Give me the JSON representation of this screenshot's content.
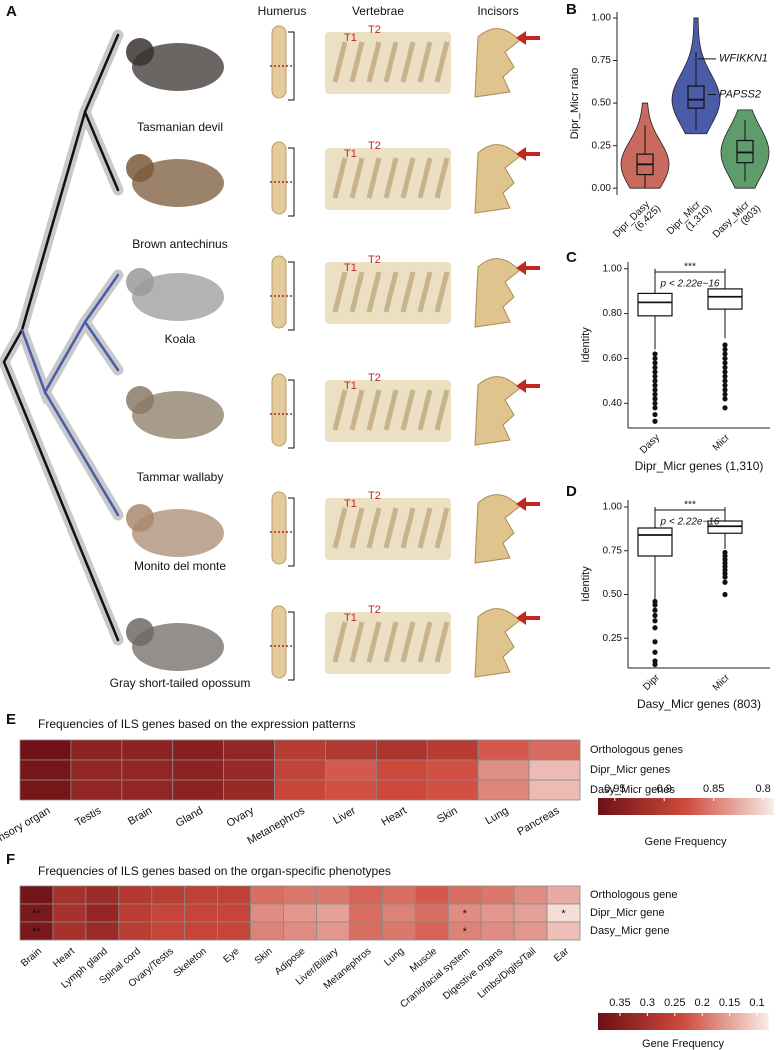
{
  "panel_a": {
    "label": "A",
    "columns": [
      "Humerus",
      "Vertebrae",
      "Incisors"
    ],
    "species": [
      "Tasmanian devil",
      "Brown antechinus",
      "Koala",
      "Tammar wallaby",
      "Monito del monte",
      "Gray short-tailed opossum"
    ],
    "vertebra_labels": [
      "T1",
      "T2"
    ]
  },
  "chart_data": [
    {
      "type": "violin",
      "panel": "B",
      "ylabel": "Dipr_Micr ratio",
      "ylim": [
        -0.04,
        1.035
      ],
      "yticks": [
        {
          "value": 0,
          "label": "0.00"
        },
        0.25,
        {
          "value": 0.5,
          "label": "0.50"
        },
        0.75,
        {
          "value": 1,
          "label": "1.00"
        }
      ],
      "boxes": [
        {
          "name": "Dipr_Dasy",
          "n_label": "(6,425)",
          "color": "#c96a5e",
          "violin": [
            0,
            0.5
          ],
          "whisker_low": 0,
          "q1": 0.08,
          "median": 0.14,
          "q3": 0.2,
          "whisker_high": 0.37
        },
        {
          "name": "Dipr_Micr",
          "n_label": "(1,310)",
          "color": "#4a5ca8",
          "violin": [
            0.32,
            1.0
          ],
          "whisker_low": 0.34,
          "q1": 0.47,
          "median": 0.52,
          "q3": 0.6,
          "whisker_high": 0.8
        },
        {
          "name": "Dasy_Micr",
          "n_label": "(803)",
          "color": "#5e9c6c",
          "violin": [
            0,
            0.46
          ],
          "whisker_low": 0.04,
          "q1": 0.15,
          "median": 0.21,
          "q3": 0.28,
          "whisker_high": 0.4
        }
      ],
      "annotations": [
        {
          "text": "WFIKKN1",
          "value": 0.76
        },
        {
          "text": "PAPSS2",
          "value": 0.55
        }
      ]
    },
    {
      "type": "box",
      "panel": "C",
      "ylabel": "Identity",
      "xlabel": "Dipr_Micr genes (1,310)",
      "ylim": [
        0.29,
        1.03
      ],
      "yticks": [
        {
          "value": 0.4,
          "label": "0.40"
        },
        {
          "value": 0.6,
          "label": "0.60"
        },
        {
          "value": 0.8,
          "label": "0.80"
        },
        {
          "value": 1,
          "label": "1.00"
        }
      ],
      "significance": "***",
      "p_label": "p < 2.22e−16",
      "boxes": [
        {
          "name": "Dasy",
          "whisker_low": 0.64,
          "q1": 0.79,
          "median": 0.85,
          "q3": 0.89,
          "whisker_high": 1.0,
          "outliers": [
            0.62,
            0.6,
            0.58,
            0.56,
            0.54,
            0.52,
            0.5,
            0.48,
            0.46,
            0.44,
            0.42,
            0.4,
            0.38,
            0.35,
            0.32
          ]
        },
        {
          "name": "Micr",
          "whisker_low": 0.69,
          "q1": 0.82,
          "median": 0.875,
          "q3": 0.91,
          "whisker_high": 1.0,
          "outliers": [
            0.66,
            0.64,
            0.62,
            0.6,
            0.58,
            0.56,
            0.54,
            0.52,
            0.5,
            0.48,
            0.46,
            0.44,
            0.42,
            0.38
          ]
        }
      ]
    },
    {
      "type": "box",
      "panel": "D",
      "ylabel": "Identity",
      "xlabel": "Dasy_Micr genes  (803)",
      "ylim": [
        0.08,
        1.04
      ],
      "yticks": [
        0.25,
        {
          "value": 0.5,
          "label": "0.50"
        },
        0.75,
        {
          "value": 1,
          "label": "1.00"
        }
      ],
      "significance": "***",
      "p_label": "p < 2.22e−16",
      "boxes": [
        {
          "name": "Dipr",
          "whisker_low": 0.47,
          "q1": 0.72,
          "median": 0.84,
          "q3": 0.88,
          "whisker_high": 1.0,
          "outliers": [
            0.46,
            0.44,
            0.41,
            0.38,
            0.35,
            0.31,
            0.23,
            0.17,
            0.12,
            0.1
          ]
        },
        {
          "name": "Micr",
          "whisker_low": 0.76,
          "q1": 0.85,
          "median": 0.89,
          "q3": 0.92,
          "whisker_high": 1.0,
          "outliers": [
            0.74,
            0.72,
            0.7,
            0.68,
            0.66,
            0.64,
            0.62,
            0.6,
            0.57,
            0.5
          ]
        }
      ]
    },
    {
      "type": "heatmap",
      "panel": "E",
      "title": "Frequencies of ILS genes based on the expression patterns",
      "columns": [
        "Sensory organ",
        "Testis",
        "Brain",
        "Gland",
        "Ovary",
        "Metanephros",
        "Liver",
        "Heart",
        "Skin",
        "Lung",
        "Pancreas"
      ],
      "rows": [
        "Orthologous genes",
        "Dipr_Micr genes",
        "Dasy_Micr genes"
      ],
      "values": [
        [
          0.965,
          0.94,
          0.94,
          0.945,
          0.935,
          0.9,
          0.905,
          0.91,
          0.9,
          0.87,
          0.86
        ],
        [
          0.96,
          0.935,
          0.935,
          0.94,
          0.93,
          0.89,
          0.87,
          0.88,
          0.875,
          0.84,
          0.815
        ],
        [
          0.96,
          0.935,
          0.935,
          0.94,
          0.93,
          0.885,
          0.875,
          0.88,
          0.875,
          0.845,
          0.815
        ]
      ],
      "zlim": [
        0.79,
        0.967
      ],
      "colormap": [
        "#f7e8e2",
        "#cf4a3c",
        "#6e1116"
      ],
      "legend_ticks": [
        0.95,
        0.9,
        0.85,
        0.8
      ],
      "legend_title": "Gene Frequency"
    },
    {
      "type": "heatmap",
      "panel": "F",
      "title": "Frequencies of ILS genes based on the organ-specific phenotypes",
      "columns": [
        "Brain",
        "Heart",
        "Lymph gland",
        "Spinal cord",
        "Ovary/Testis",
        "Skeleton",
        "Eye",
        "Skin",
        "Adipose",
        "Liver/Biliary",
        "Metanephros",
        "Lung",
        "Muscle",
        "Craniofacial system",
        "Digestive organs",
        "Limbs/Digits/Tail",
        "Ear"
      ],
      "rows": [
        "Orthologous gene",
        "Dipr_Micr gene",
        "Dasy_Micr gene"
      ],
      "values": [
        [
          0.38,
          0.3,
          0.32,
          0.28,
          0.27,
          0.26,
          0.26,
          0.2,
          0.19,
          0.19,
          0.21,
          0.2,
          0.22,
          0.2,
          0.19,
          0.17,
          0.14
        ],
        [
          0.37,
          0.3,
          0.33,
          0.27,
          0.25,
          0.25,
          0.25,
          0.17,
          0.16,
          0.15,
          0.2,
          0.18,
          0.2,
          0.17,
          0.16,
          0.15,
          0.09
        ],
        [
          0.37,
          0.3,
          0.32,
          0.27,
          0.25,
          0.25,
          0.25,
          0.18,
          0.17,
          0.16,
          0.2,
          0.19,
          0.21,
          0.18,
          0.17,
          0.16,
          0.12
        ]
      ],
      "stars": [
        [
          null,
          null,
          null,
          null,
          null,
          null,
          null,
          null,
          null,
          null,
          null,
          null,
          null,
          null,
          null,
          null,
          null
        ],
        [
          "**",
          null,
          null,
          null,
          null,
          null,
          null,
          null,
          null,
          null,
          null,
          null,
          null,
          "*",
          null,
          null,
          "*"
        ],
        [
          "**",
          null,
          null,
          null,
          null,
          null,
          null,
          null,
          null,
          null,
          null,
          null,
          null,
          "*",
          null,
          null,
          null
        ]
      ],
      "zlim": [
        0.08,
        0.39
      ],
      "colormap": [
        "#f7e8e2",
        "#cf4a3c",
        "#6e1116"
      ],
      "legend_ticks": [
        0.35,
        0.3,
        0.25,
        0.2,
        0.15,
        0.1
      ],
      "legend_title": "Gene Frequency"
    }
  ]
}
